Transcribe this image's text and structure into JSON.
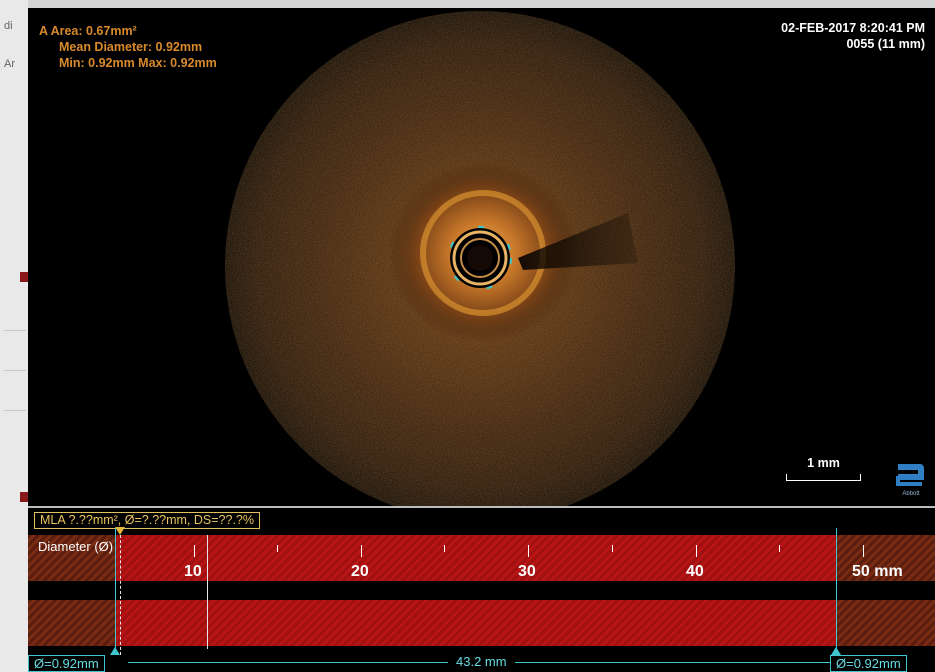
{
  "left_strip": {
    "fragments": [
      "di",
      "Ar"
    ]
  },
  "measurement": {
    "area": "A Area: 0.67mm²",
    "mean_diameter": "Mean Diameter: 0.92mm",
    "min_max": "Min: 0.92mm   Max: 0.92mm"
  },
  "stamp": {
    "datetime": "02-FEB-2017 8:20:41 PM",
    "frame": "0055 (11 mm)"
  },
  "scale_bar": {
    "label": "1 mm"
  },
  "logo": {
    "icon": "abbott-logo-icon",
    "text": "Abbott"
  },
  "longitudinal": {
    "mla_label": "MLA ?.??mm², Ø=?.??mm, DS=??.?%",
    "row_label": "Diameter (Ø)",
    "axis_labels": [
      "10",
      "20",
      "30",
      "40",
      "50 mm"
    ],
    "left_diameter": "Ø=0.92mm",
    "right_diameter": "Ø=0.92mm",
    "length": "43.2 mm"
  },
  "colors": {
    "measurement": "#d98a2c",
    "mla": "#e9c45c",
    "cyan": "#3fc6cf",
    "band_red": "#b71515"
  }
}
